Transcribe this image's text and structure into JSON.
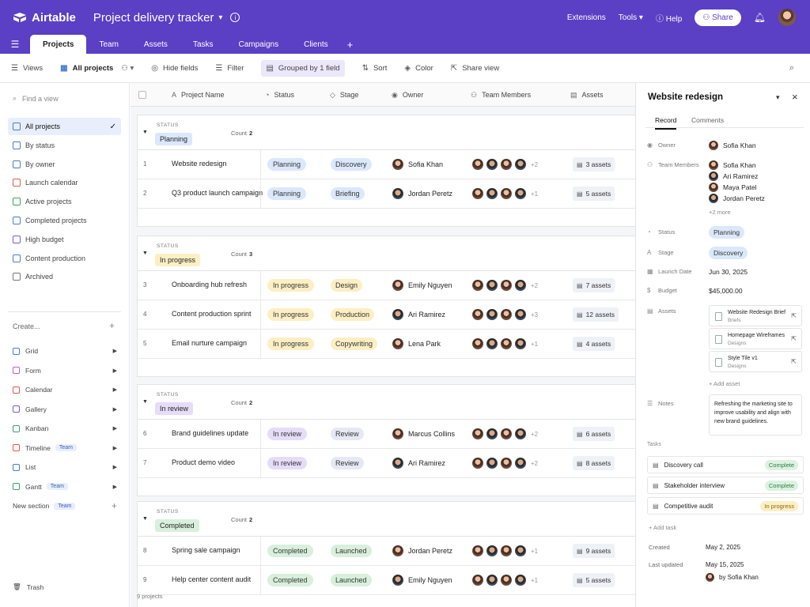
{
  "app": {
    "name": "Airtable",
    "base_title": "Project delivery tracker"
  },
  "header": {
    "extensions": "Extensions",
    "tools": "Tools",
    "help": "Help",
    "share": "Share"
  },
  "tabs": [
    "Projects",
    "Team",
    "Assets",
    "Tasks",
    "Campaigns",
    "Clients"
  ],
  "toolbar": {
    "views": "Views",
    "view_name": "All projects",
    "hide_fields": "Hide fields",
    "filter": "Filter",
    "grouped": "Grouped by 1 field",
    "sort": "Sort",
    "color": "Color",
    "share_view": "Share view"
  },
  "sidebar": {
    "find_placeholder": "Find a view",
    "views": [
      {
        "label": "All projects",
        "color": "#4a7bd0"
      },
      {
        "label": "By status",
        "color": "#4a7bd0"
      },
      {
        "label": "By owner",
        "color": "#4a7bd0"
      },
      {
        "label": "Launch calendar",
        "color": "#e0574f"
      },
      {
        "label": "Active projects",
        "color": "#3aa36b"
      },
      {
        "label": "Completed projects",
        "color": "#4a7bd0"
      },
      {
        "label": "High budget",
        "color": "#7a5bd0"
      },
      {
        "label": "Content production",
        "color": "#4a7bd0"
      },
      {
        "label": "Archived",
        "color": "#777777"
      }
    ],
    "create_label": "Create...",
    "create_items": [
      {
        "label": "Grid",
        "tag": "",
        "color": "#4a7bd0"
      },
      {
        "label": "Form",
        "tag": "",
        "color": "#c75bb5"
      },
      {
        "label": "Calendar",
        "tag": "",
        "color": "#e0574f"
      },
      {
        "label": "Gallery",
        "tag": "",
        "color": "#7a5bd0"
      },
      {
        "label": "Kanban",
        "tag": "",
        "color": "#3aa36b"
      },
      {
        "label": "Timeline",
        "tag": "Team",
        "color": "#e0574f"
      },
      {
        "label": "List",
        "tag": "",
        "color": "#4a7bd0"
      },
      {
        "label": "Gantt",
        "tag": "Team",
        "color": "#3aa36b"
      },
      {
        "label": "New section",
        "tag": "Team",
        "color": ""
      }
    ],
    "trash": "Trash"
  },
  "grid": {
    "columns": [
      "Project Name",
      "Status",
      "Stage",
      "Owner",
      "Team Members",
      "Assets"
    ],
    "status_label": "STATUS",
    "count_label": "Count",
    "groups": [
      {
        "name": "Planning",
        "bg": "#dbe8fb",
        "count": "2",
        "rows": [
          {
            "num": "1",
            "name": "Website redesign",
            "status": "Planning",
            "stage": "Discovery",
            "owner": "Sofia Khan",
            "more": "+2",
            "assets": "3 assets"
          },
          {
            "num": "2",
            "name": "Q3 product launch campaign",
            "status": "Planning",
            "stage": "Briefing",
            "owner": "Jordan Peretz",
            "more": "+1",
            "assets": "5 assets"
          }
        ]
      },
      {
        "name": "In progress",
        "bg": "#fcefc4",
        "count": "3",
        "rows": [
          {
            "num": "3",
            "name": "Onboarding hub refresh",
            "status": "In progress",
            "stage": "Design",
            "owner": "Emily Nguyen",
            "more": "+2",
            "assets": "7 assets"
          },
          {
            "num": "4",
            "name": "Content production sprint",
            "status": "In progress",
            "stage": "Production",
            "owner": "Ari Ramirez",
            "more": "+3",
            "assets": "12 assets"
          },
          {
            "num": "5",
            "name": "Email nurture campaign",
            "status": "In progress",
            "stage": "Copywriting",
            "owner": "Lena Park",
            "more": "+1",
            "assets": "4 assets"
          }
        ]
      },
      {
        "name": "In review",
        "bg": "#e6dcf8",
        "count": "2",
        "rows": [
          {
            "num": "6",
            "name": "Brand guidelines update",
            "status": "In review",
            "stage": "Review",
            "owner": "Marcus Collins",
            "more": "+2",
            "assets": "6 assets"
          },
          {
            "num": "7",
            "name": "Product demo video",
            "status": "In review",
            "stage": "Review",
            "owner": "Ari Ramirez",
            "more": "+2",
            "assets": "8 assets"
          }
        ]
      },
      {
        "name": "Completed",
        "bg": "#d8f0dc",
        "count": "2",
        "rows": [
          {
            "num": "8",
            "name": "Spring sale campaign",
            "status": "Completed",
            "stage": "Launched",
            "owner": "Jordan Peretz",
            "more": "+1",
            "assets": "9 assets"
          },
          {
            "num": "9",
            "name": "Help center content audit",
            "status": "Completed",
            "stage": "Launched",
            "owner": "Emily Nguyen",
            "more": "+1",
            "assets": "5 assets"
          }
        ]
      }
    ],
    "footer": "9 projects"
  },
  "panel": {
    "title": "Website redesign",
    "tab_record": "Record",
    "tab_comments": "Comments",
    "labels": {
      "owner": "Owner",
      "team": "Team Members",
      "status": "Status",
      "stage": "Stage",
      "launch": "Launch Date",
      "budget": "Budget",
      "assets": "Assets",
      "notes": "Notes",
      "tasks": "Tasks"
    },
    "owner": "Sofia Khan",
    "team": [
      "Sofia Khan",
      "Ari Ramirez",
      "Maya Patel",
      "Jordan Peretz"
    ],
    "team_more": "+2 more",
    "status": "Planning",
    "stage": "Discovery",
    "launch_date": "Jun 30, 2025",
    "budget": "$45,000.00",
    "assets": [
      {
        "title": "Website Redesign Brief",
        "sub": "Briefs"
      },
      {
        "title": "Homepage Wireframes",
        "sub": "Designs"
      },
      {
        "title": "Style Tile v1",
        "sub": "Designs"
      }
    ],
    "add_asset": "+ Add asset",
    "notes": "Refreshing the marketing site to improve usability and align with new brand guidelines.",
    "tasks": [
      {
        "name": "Discovery call",
        "state": "Complete",
        "bg": "#dcf2e0",
        "fg": "#2f7a44"
      },
      {
        "name": "Stakeholder interview",
        "state": "Complete",
        "bg": "#dcf2e0",
        "fg": "#2f7a44"
      },
      {
        "name": "Competitive audit",
        "state": "In progress",
        "bg": "#fcefc4",
        "fg": "#8a6a10"
      }
    ],
    "add_task": "+ Add task",
    "created_label": "Created",
    "created": "May 2, 2025",
    "updated_label": "Last updated",
    "updated": "May 15, 2025",
    "updated_by": "by Sofia Khan"
  }
}
